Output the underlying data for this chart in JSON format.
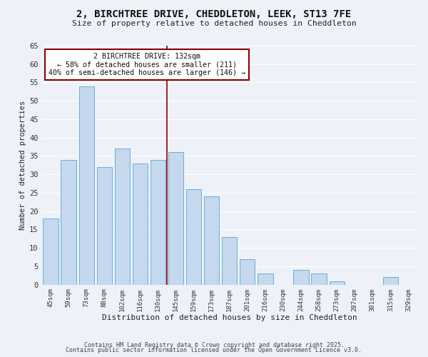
{
  "title1": "2, BIRCHTREE DRIVE, CHEDDLETON, LEEK, ST13 7FE",
  "title2": "Size of property relative to detached houses in Cheddleton",
  "xlabel": "Distribution of detached houses by size in Cheddleton",
  "ylabel": "Number of detached properties",
  "footer1": "Contains HM Land Registry data © Crown copyright and database right 2025.",
  "footer2": "Contains public sector information licensed under the Open Government Licence v3.0.",
  "annotation_line1": "2 BIRCHTREE DRIVE: 132sqm",
  "annotation_line2": "← 58% of detached houses are smaller (211)",
  "annotation_line3": "40% of semi-detached houses are larger (146) →",
  "bar_labels": [
    "45sqm",
    "59sqm",
    "73sqm",
    "88sqm",
    "102sqm",
    "116sqm",
    "130sqm",
    "145sqm",
    "159sqm",
    "173sqm",
    "187sqm",
    "201sqm",
    "216sqm",
    "230sqm",
    "244sqm",
    "258sqm",
    "273sqm",
    "287sqm",
    "301sqm",
    "315sqm",
    "329sqm"
  ],
  "bar_values": [
    18,
    34,
    54,
    32,
    37,
    33,
    34,
    36,
    26,
    24,
    13,
    7,
    3,
    0,
    4,
    3,
    1,
    0,
    0,
    2,
    0
  ],
  "bar_color": "#c5d8ed",
  "bar_edge_color": "#6aaed6",
  "highlight_bar_index": 6,
  "highlight_line_color": "#8b0000",
  "ylim": [
    0,
    65
  ],
  "yticks": [
    0,
    5,
    10,
    15,
    20,
    25,
    30,
    35,
    40,
    45,
    50,
    55,
    60,
    65
  ],
  "bg_color": "#eef2f8",
  "grid_color": "#ffffff",
  "annotation_box_edge": "#8b0000",
  "annotation_box_face": "#ffffff",
  "title1_fontsize": 10,
  "title2_fontsize": 8.5
}
